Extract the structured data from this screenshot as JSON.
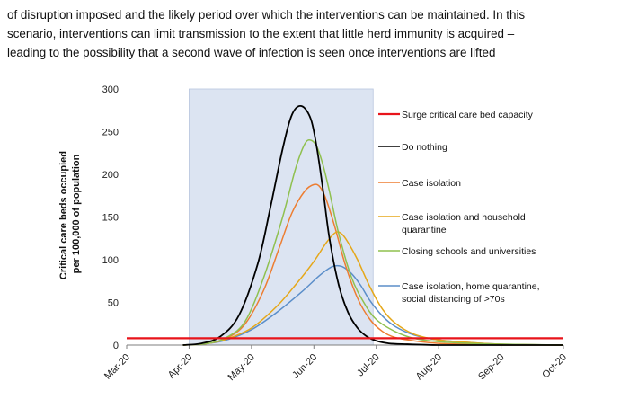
{
  "paragraph": {
    "lines": [
      "of disruption imposed and the likely period over which the interventions can be maintained. In this",
      "scenario, interventions can limit transmission to the extent that little herd immunity is acquired –",
      "leading to the possibility that a second wave of infection is seen once interventions are lifted"
    ]
  },
  "chart_data": {
    "type": "line",
    "ylabel": [
      "Critical care beds occupied",
      "per 100,000 of population"
    ],
    "ylim": [
      0,
      300
    ],
    "yticks": [
      0,
      50,
      100,
      150,
      200,
      250,
      300
    ],
    "xlim": [
      0,
      7
    ],
    "xticks": [
      "Mar-20",
      "Apr-20",
      "May-20",
      "Jun-20",
      "Jul-20",
      "Aug-20",
      "Sep-20",
      "Oct-20"
    ],
    "shaded_region": {
      "x_start": 1.0,
      "x_end": 3.95,
      "color": "#dce4f2"
    },
    "legend_position": "right",
    "series": [
      {
        "name": "Surge critical care bed capacity",
        "color": "#e8141b",
        "width": 2.2,
        "x": [
          0,
          7
        ],
        "y": [
          8,
          8
        ]
      },
      {
        "name": "Do nothing",
        "color": "#000000",
        "width": 1.8,
        "x": [
          0.9,
          1.2,
          1.5,
          1.8,
          2.1,
          2.3,
          2.5,
          2.65,
          2.8,
          2.95,
          3.05,
          3.15,
          3.25,
          3.4,
          3.55,
          3.7,
          3.85,
          4.0,
          4.2,
          4.5,
          5.0,
          5.5,
          6.0,
          7.0
        ],
        "y": [
          0,
          2,
          10,
          35,
          95,
          160,
          230,
          270,
          280,
          265,
          230,
          180,
          125,
          70,
          38,
          20,
          10,
          5,
          2,
          1,
          0,
          0,
          0,
          0
        ]
      },
      {
        "name": "Case isolation",
        "color": "#ed7d31",
        "width": 1.5,
        "x": [
          0.9,
          1.3,
          1.6,
          1.9,
          2.2,
          2.45,
          2.65,
          2.85,
          3.0,
          3.1,
          3.2,
          3.35,
          3.5,
          3.7,
          3.9,
          4.1,
          4.3,
          4.6,
          5.0,
          5.5,
          6.0,
          7.0
        ],
        "y": [
          0,
          2,
          8,
          25,
          65,
          115,
          155,
          180,
          188,
          185,
          170,
          135,
          95,
          55,
          30,
          16,
          9,
          5,
          2,
          1,
          0,
          0
        ]
      },
      {
        "name": "Case isolation and household quarantine",
        "color": "#e5a719",
        "width": 1.5,
        "x": [
          0.9,
          1.3,
          1.6,
          2.0,
          2.4,
          2.7,
          3.0,
          3.2,
          3.35,
          3.45,
          3.55,
          3.7,
          3.9,
          4.1,
          4.3,
          4.6,
          5.0,
          5.5,
          6.0,
          7.0
        ],
        "y": [
          0,
          2,
          7,
          20,
          45,
          70,
          98,
          120,
          132,
          130,
          120,
          100,
          68,
          42,
          26,
          13,
          6,
          3,
          1,
          0
        ]
      },
      {
        "name": "Closing schools and universities",
        "color": "#8fc04f",
        "width": 1.5,
        "x": [
          0.9,
          1.3,
          1.6,
          1.9,
          2.2,
          2.5,
          2.7,
          2.85,
          2.95,
          3.05,
          3.15,
          3.25,
          3.4,
          3.6,
          3.8,
          4.0,
          4.3,
          4.6,
          5.0,
          5.5,
          6.0,
          7.0
        ],
        "y": [
          0,
          2,
          9,
          28,
          80,
          150,
          205,
          235,
          240,
          232,
          210,
          180,
          130,
          80,
          50,
          30,
          16,
          8,
          4,
          2,
          1,
          0
        ]
      },
      {
        "name": "Case isolation, home quarantine, social distancing of >70s",
        "color": "#5b8ec9",
        "width": 1.5,
        "x": [
          0.9,
          1.3,
          1.6,
          2.0,
          2.4,
          2.8,
          3.1,
          3.3,
          3.45,
          3.6,
          3.75,
          3.9,
          4.1,
          4.3,
          4.6,
          5.0,
          5.5,
          6.0,
          7.0
        ],
        "y": [
          0,
          2,
          6,
          18,
          38,
          62,
          82,
          92,
          92,
          84,
          70,
          52,
          34,
          22,
          12,
          6,
          3,
          1,
          0
        ]
      }
    ]
  }
}
